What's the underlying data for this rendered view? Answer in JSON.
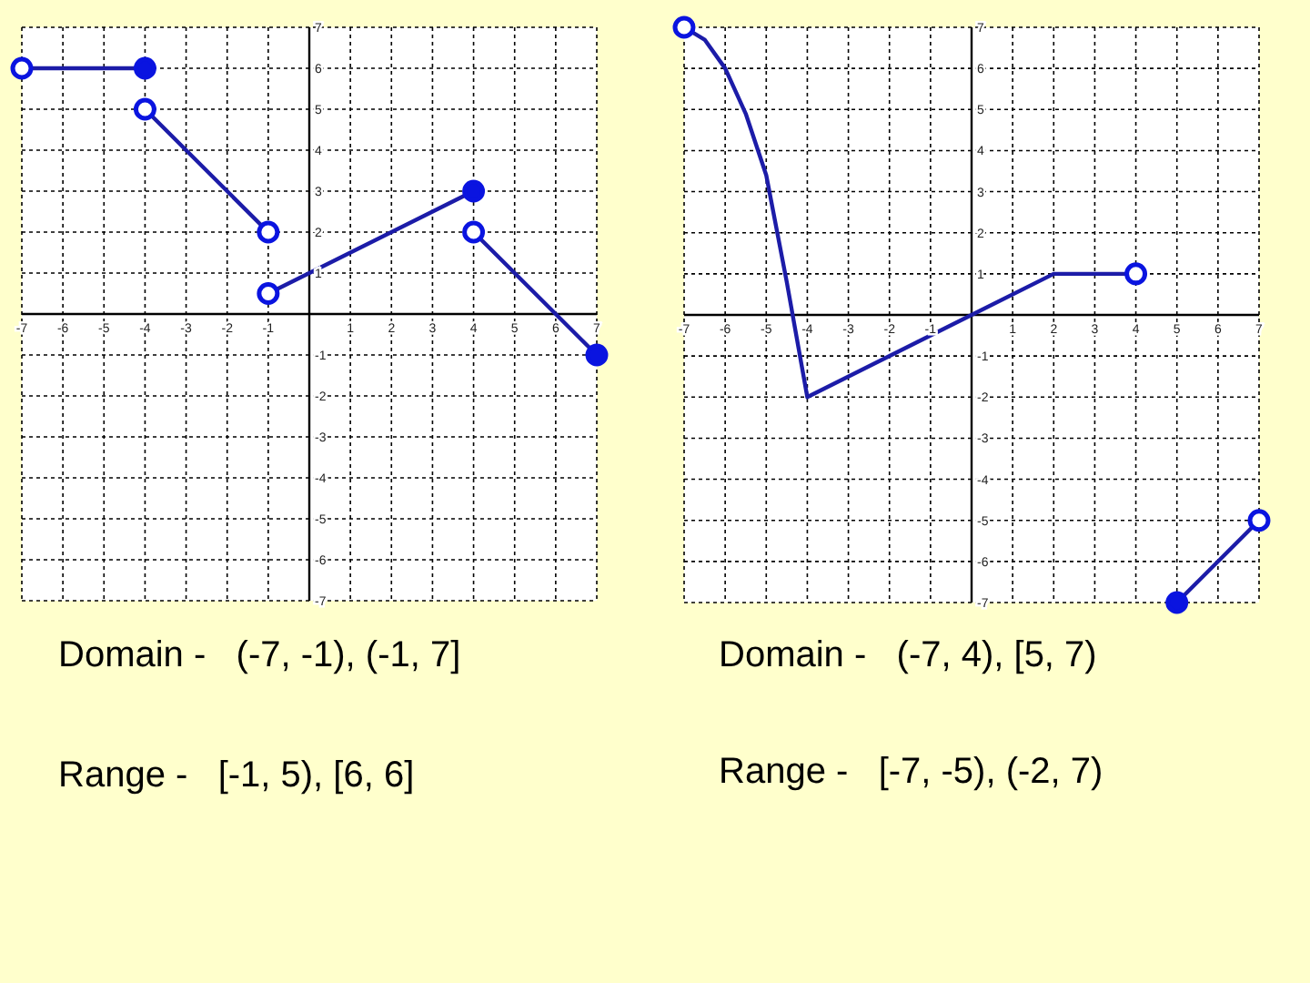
{
  "chart_data": [
    {
      "type": "line",
      "xlim": [
        -7,
        7
      ],
      "ylim": [
        -7,
        7
      ],
      "xticks": [
        -7,
        -6,
        -5,
        -4,
        -3,
        -2,
        -1,
        {
          "value": 0,
          "label": null
        },
        1,
        2,
        3,
        4,
        5,
        6,
        7
      ],
      "yticks": [
        -7,
        -6,
        -5,
        -4,
        -3,
        -2,
        -1,
        {
          "value": 0,
          "label": null
        },
        1,
        2,
        3,
        4,
        5,
        6,
        7
      ],
      "grid": true,
      "line_style": "solid",
      "annotations": [
        "Domain -   (-7, -1), (-1, 7]",
        "Range -   [-1, 5), [6, 6]"
      ],
      "series": [
        {
          "color": "#1c1ca8",
          "x": [
            -7,
            -4
          ],
          "values": [
            6,
            6
          ]
        },
        {
          "color": "#1c1ca8",
          "x": [
            -4,
            -1
          ],
          "values": [
            5,
            2
          ]
        },
        {
          "color": "#1c1ca8",
          "x": [
            -1,
            4
          ],
          "values": [
            0.5,
            3
          ]
        },
        {
          "color": "#1c1ca8",
          "x": [
            4,
            7
          ],
          "values": [
            2,
            -1
          ]
        },
        {
          "type": "scatter",
          "marker": "circle",
          "color": "#0a14e0",
          "x": [
            -4,
            4,
            7
          ],
          "values": [
            6,
            3,
            -1
          ]
        },
        {
          "type": "scatter",
          "marker": "circle",
          "color": "#ffffff",
          "x": [
            -7,
            -4,
            -1,
            -1,
            4
          ],
          "values": [
            6,
            5,
            2,
            0.5,
            2
          ]
        }
      ]
    },
    {
      "type": "line",
      "xlim": [
        -7,
        7
      ],
      "ylim": [
        -7,
        7
      ],
      "xticks": [
        -7,
        -6,
        -5,
        -4,
        -3,
        -2,
        -1,
        {
          "value": 0,
          "label": null
        },
        1,
        2,
        3,
        4,
        5,
        6,
        7
      ],
      "yticks": [
        -7,
        -6,
        -5,
        -4,
        -3,
        -2,
        -1,
        {
          "value": 0,
          "label": null
        },
        1,
        2,
        3,
        4,
        5,
        6,
        7
      ],
      "grid": true,
      "line_style": "solid",
      "annotations": [
        "Domain -   (-7, 4), [5, 7)",
        "Range -   [-7, -5), (-2, 7)"
      ],
      "series": [
        {
          "color": "#1c1ca8",
          "x": [
            -7,
            -6.5,
            -6,
            -5.5,
            -5,
            -4.5,
            -4,
            0,
            2,
            4
          ],
          "values": [
            7,
            6.7,
            6,
            4.9,
            3.4,
            0.8,
            -2,
            0,
            1,
            1
          ]
        },
        {
          "color": "#1c1ca8",
          "x": [
            5,
            7
          ],
          "values": [
            -7,
            -5
          ]
        },
        {
          "type": "scatter",
          "marker": "circle",
          "color": "#0a14e0",
          "x": [
            5
          ],
          "values": [
            -7
          ]
        },
        {
          "type": "scatter",
          "marker": "circle",
          "color": "#ffffff",
          "x": [
            -7,
            4,
            7
          ],
          "values": [
            7,
            1,
            -5
          ]
        }
      ]
    }
  ]
}
